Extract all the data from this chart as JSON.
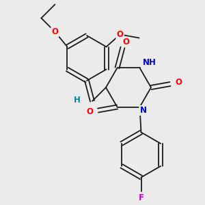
{
  "background_color": "#ebebeb",
  "bond_color": "#1a1a1a",
  "atom_colors": {
    "O": "#ff0000",
    "N": "#0000cc",
    "F": "#cc00cc",
    "H_teal": "#008b8b",
    "C": "#1a1a1a"
  },
  "figsize": [
    3.0,
    3.0
  ],
  "dpi": 100
}
